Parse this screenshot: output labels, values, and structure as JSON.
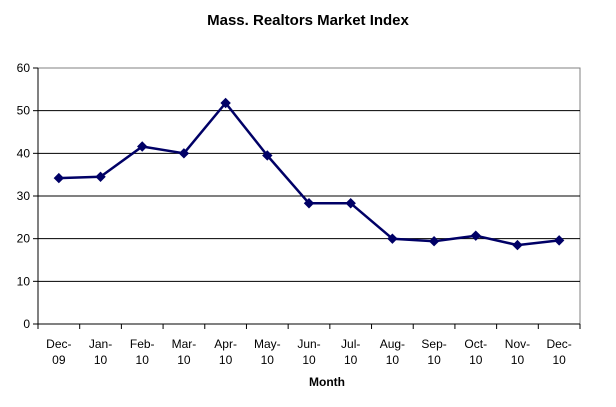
{
  "chart_data": {
    "type": "line",
    "title": "Mass. Realtors Market Index",
    "xlabel": "Month",
    "ylabel": "",
    "categories": [
      "Dec-09",
      "Jan-10",
      "Feb-10",
      "Mar-10",
      "Apr-10",
      "May-10",
      "Jun-10",
      "Jul-10",
      "Aug-10",
      "Sep-10",
      "Oct-10",
      "Nov-10",
      "Dec-10"
    ],
    "series": [
      {
        "values": [
          34.2,
          34.5,
          41.6,
          40.0,
          51.8,
          39.5,
          28.3,
          28.3,
          20.0,
          19.4,
          20.7,
          18.5,
          19.6
        ],
        "color": "#000066"
      }
    ],
    "ylim": [
      0,
      60
    ],
    "yticks": [
      0,
      10,
      20,
      30,
      40,
      50,
      60
    ],
    "grid": true,
    "legend": "none"
  }
}
